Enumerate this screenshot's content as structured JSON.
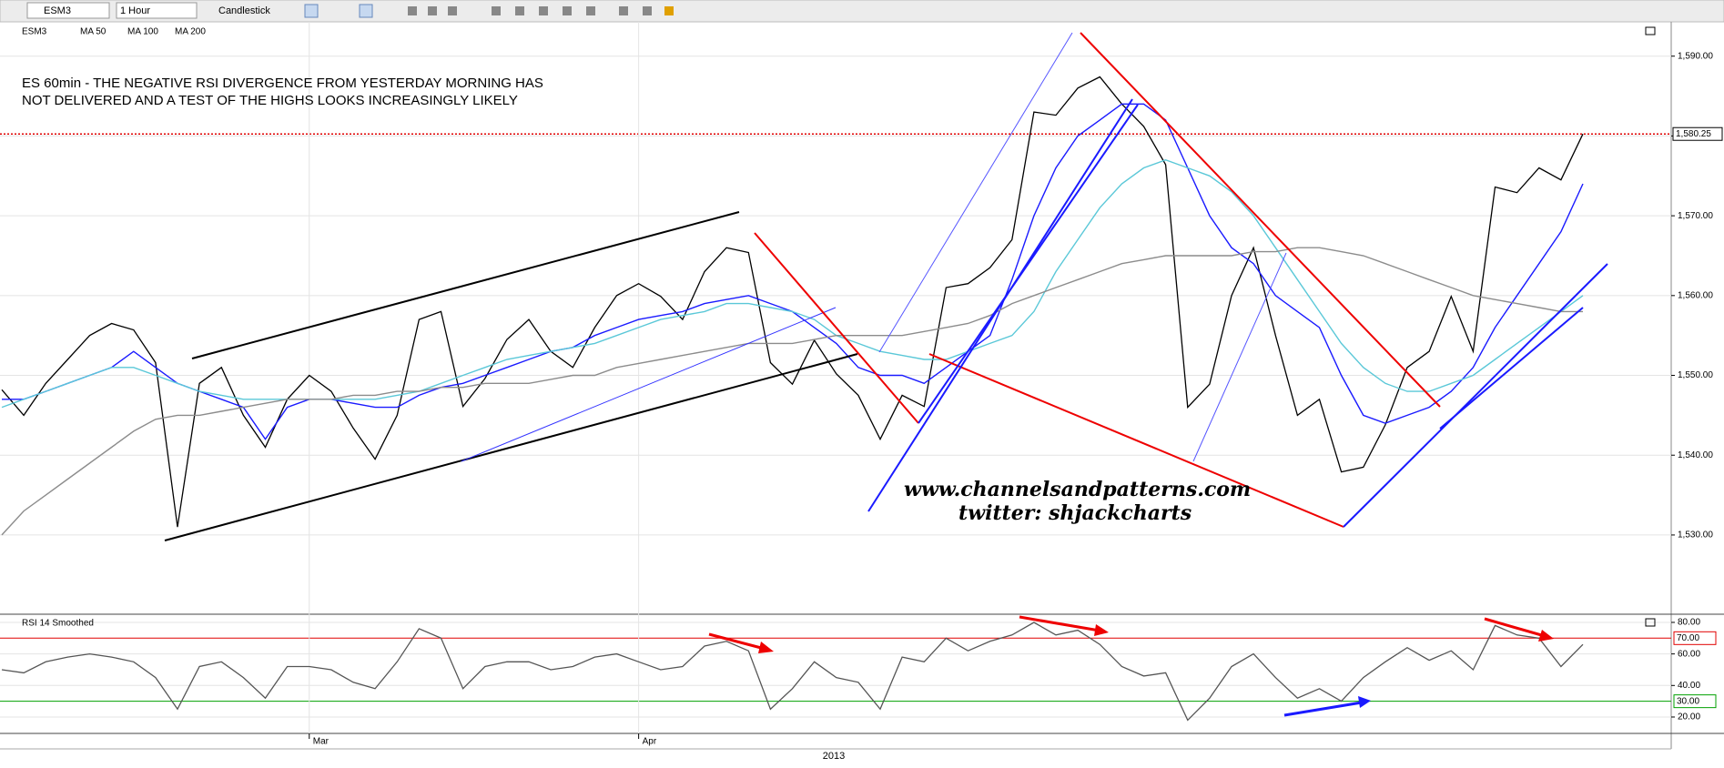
{
  "toolbar": {
    "symbol": "ESM3",
    "interval": "1 Hour",
    "chart_style": "Candlestick"
  },
  "chart_data": [
    {
      "type": "line",
      "title": [
        "ES 60min - THE NEGATIVE RSI DIVERGENCE FROM YESTERDAY MORNING HAS",
        "NOT DELIVERED AND A TEST OF THE HIGHS LOOKS INCREASINGLY LIKELY"
      ],
      "annotations": [
        "www.channelsandpatterns.com",
        "twitter: shjackcharts"
      ],
      "x_axis_year": "2013",
      "categories": [
        null,
        null,
        null,
        null,
        null,
        null,
        null,
        null,
        null,
        null,
        null,
        null,
        null,
        null,
        "Mar",
        null,
        null,
        null,
        null,
        null,
        null,
        null,
        null,
        null,
        null,
        null,
        null,
        null,
        null,
        "Apr",
        null,
        null,
        null,
        null,
        null,
        null,
        null,
        null,
        null,
        null,
        null,
        null,
        null,
        null,
        null,
        null,
        null,
        null,
        null,
        null,
        null,
        null,
        null,
        null,
        null,
        null,
        null,
        null,
        null,
        null,
        null,
        null,
        null,
        null,
        null,
        null,
        null,
        null,
        null,
        null,
        null,
        null,
        null
      ],
      "ylim": [
        1520.3,
        1594.3
      ],
      "yticks": [
        {
          "value": 1530,
          "label": "1,530.00"
        },
        {
          "value": 1540,
          "label": "1,540.00"
        },
        {
          "value": 1550,
          "label": "1,550.00"
        },
        {
          "value": 1560,
          "label": "1,560.00"
        },
        {
          "value": 1570,
          "label": "1,570.00"
        },
        {
          "value": 1580,
          "label": "1,580.00"
        },
        {
          "value": 1590,
          "label": "1,590.00"
        }
      ],
      "grid": true,
      "last_price": {
        "value": 1580.25,
        "label": "1,580.25",
        "color": "#e00000"
      },
      "series": [
        {
          "name": "ESM3",
          "color": "#000000",
          "values": [
            1548.2,
            1545,
            1549,
            1552,
            1555,
            1556.5,
            1555.7,
            1551.6,
            1531,
            1549,
            1551,
            1545,
            1541,
            1547,
            1550,
            1548,
            1543.4,
            1539.5,
            1545,
            1557,
            1558,
            1546.1,
            1549.6,
            1554.5,
            1557,
            1553,
            1551,
            1556,
            1560,
            1561.5,
            1559.9,
            1557,
            1563,
            1566,
            1565.4,
            1551.6,
            1548.9,
            1554.4,
            1550.2,
            1547.5,
            1542,
            1547.5,
            1546.1,
            1561,
            1561.5,
            1563.5,
            1567,
            1583,
            1582.6,
            1586,
            1587.4,
            1584,
            1581.2,
            1576.4,
            1546,
            1548.9,
            1560,
            1566,
            1555,
            1545,
            1547,
            1537.9,
            1538.5,
            1543.8,
            1551,
            1553,
            1559.9,
            1553,
            1573.6,
            1572.9,
            1576,
            1574.5,
            1580.25
          ]
        },
        {
          "name": "MA 50",
          "color": "#1a1aff",
          "values": [
            1547,
            1547,
            1548,
            1549,
            1550,
            1551,
            1553,
            1551,
            1549,
            1548,
            1547,
            1546,
            1542,
            1546,
            1547,
            1547,
            1546.5,
            1546,
            1546,
            1547.5,
            1548.5,
            1549,
            1550,
            1551,
            1552,
            1553,
            1553.5,
            1555,
            1556,
            1557,
            1557.5,
            1558,
            1559,
            1559.5,
            1560,
            1559,
            1558,
            1556,
            1554,
            1551,
            1550,
            1550,
            1549,
            1551,
            1553,
            1555,
            1562,
            1570,
            1576,
            1580,
            1582,
            1584,
            1584,
            1582,
            1576,
            1570,
            1566,
            1564,
            1560,
            1558,
            1556,
            1550,
            1545,
            1544,
            1545,
            1546,
            1548,
            1551,
            1556,
            1560,
            1564,
            1568,
            1574
          ]
        },
        {
          "name": "MA 100",
          "color": "#5bc8d8",
          "values": [
            1546,
            1547,
            1548,
            1549,
            1550,
            1551,
            1551,
            1550,
            1549,
            1548,
            1547.5,
            1547,
            1547,
            1547,
            1547,
            1547,
            1547,
            1547,
            1547.5,
            1548,
            1549,
            1550,
            1551,
            1552,
            1552.5,
            1553,
            1553.5,
            1554,
            1555,
            1556,
            1557,
            1557.5,
            1558,
            1559,
            1559,
            1558.5,
            1558,
            1557,
            1555,
            1554,
            1553,
            1552.5,
            1552,
            1552,
            1553,
            1554,
            1555,
            1558,
            1563,
            1567,
            1571,
            1574,
            1576,
            1577,
            1576,
            1575,
            1573,
            1570,
            1566,
            1562,
            1558,
            1554,
            1551,
            1549,
            1548,
            1548,
            1549,
            1550,
            1552,
            1554,
            1556,
            1558,
            1560
          ]
        },
        {
          "name": "MA 200",
          "color": "#8c8c8c",
          "values": [
            1530,
            1533,
            1535,
            1537,
            1539,
            1541,
            1543,
            1544.5,
            1545,
            1545,
            1545.5,
            1546,
            1546.5,
            1547,
            1547,
            1547,
            1547.5,
            1547.5,
            1548,
            1548,
            1548.5,
            1548.5,
            1549,
            1549,
            1549,
            1549.5,
            1550,
            1550,
            1551,
            1551.5,
            1552,
            1552.5,
            1553,
            1553.5,
            1554,
            1554,
            1554,
            1554.5,
            1555,
            1555,
            1555,
            1555,
            1555.5,
            1556,
            1556.5,
            1557.5,
            1559,
            1560,
            1561,
            1562,
            1563,
            1564,
            1564.5,
            1565,
            1565,
            1565,
            1565,
            1565.5,
            1565.5,
            1566,
            1566,
            1565.5,
            1565,
            1564,
            1563,
            1562,
            1561,
            1560,
            1559.5,
            1559,
            1558.5,
            1558,
            1558
          ]
        }
      ]
    },
    {
      "type": "line",
      "ylim": [
        9.6,
        84.6
      ],
      "yticks": [
        {
          "value": 20,
          "label": "20.00"
        },
        {
          "value": 40,
          "label": "40.00"
        },
        {
          "value": 60,
          "label": "60.00"
        },
        {
          "value": 80,
          "label": "80.00"
        }
      ],
      "levels": [
        {
          "value": 70,
          "label": "70.00",
          "color": "#e00000"
        },
        {
          "value": 30,
          "label": "30.00",
          "color": "#00a000"
        }
      ],
      "series": [
        {
          "name": "RSI 14 Smoothed",
          "color": "#555555",
          "values": [
            50,
            48,
            55,
            58,
            60,
            58,
            55,
            45,
            25,
            52,
            55,
            45,
            32,
            52,
            52,
            50,
            42,
            38,
            55,
            76,
            70,
            38,
            52,
            55,
            55,
            50,
            52,
            58,
            60,
            55,
            50,
            52,
            65,
            68,
            62,
            25,
            38,
            55,
            45,
            42,
            25,
            58,
            55,
            70,
            62,
            68,
            72,
            80,
            72,
            75,
            66,
            52,
            46,
            48,
            18,
            32,
            52,
            60,
            45,
            32,
            38,
            30,
            45,
            55,
            64,
            56,
            62,
            50,
            78,
            72,
            70,
            52,
            66
          ]
        }
      ]
    }
  ]
}
